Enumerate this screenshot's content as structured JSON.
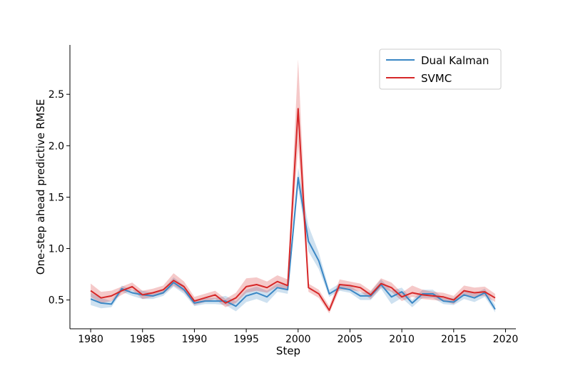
{
  "chart_data": {
    "type": "line",
    "title": "",
    "xlabel": "Step",
    "ylabel": "One-step ahead predictive RMSE",
    "xlim": [
      1978,
      2021
    ],
    "ylim": [
      0.22,
      2.98
    ],
    "xticks": [
      1980,
      1985,
      1990,
      1995,
      2000,
      2005,
      2010,
      2015,
      2020
    ],
    "yticks": [
      0.5,
      1.0,
      1.5,
      2.0,
      2.5
    ],
    "ytick_labels": [
      "0.5",
      "1.0",
      "1.5",
      "2.0",
      "2.5"
    ],
    "grid": false,
    "legend_position": "upper right",
    "x": [
      1980,
      1981,
      1982,
      1983,
      1984,
      1985,
      1986,
      1987,
      1988,
      1989,
      1990,
      1991,
      1992,
      1993,
      1994,
      1995,
      1996,
      1997,
      1998,
      1999,
      2000,
      2001,
      2002,
      2003,
      2004,
      2005,
      2006,
      2007,
      2008,
      2009,
      2010,
      2011,
      2012,
      2013,
      2014,
      2015,
      2016,
      2017,
      2018,
      2019
    ],
    "series": [
      {
        "name": "Dual Kalman",
        "color": "#3a87c5",
        "band_color": "#3a87c5",
        "values": [
          0.51,
          0.47,
          0.46,
          0.61,
          0.57,
          0.55,
          0.54,
          0.57,
          0.67,
          0.6,
          0.47,
          0.49,
          0.49,
          0.49,
          0.44,
          0.54,
          0.57,
          0.53,
          0.62,
          0.6,
          1.69,
          1.07,
          0.88,
          0.56,
          0.62,
          0.6,
          0.54,
          0.54,
          0.65,
          0.53,
          0.58,
          0.47,
          0.56,
          0.56,
          0.49,
          0.48,
          0.55,
          0.52,
          0.57,
          0.41
        ],
        "lower": [
          0.45,
          0.42,
          0.43,
          0.58,
          0.54,
          0.51,
          0.51,
          0.54,
          0.63,
          0.56,
          0.44,
          0.46,
          0.46,
          0.45,
          0.39,
          0.48,
          0.51,
          0.47,
          0.58,
          0.56,
          1.59,
          0.97,
          0.8,
          0.53,
          0.59,
          0.57,
          0.5,
          0.5,
          0.61,
          0.46,
          0.52,
          0.43,
          0.52,
          0.52,
          0.46,
          0.45,
          0.51,
          0.48,
          0.53,
          0.38
        ],
        "upper": [
          0.57,
          0.52,
          0.49,
          0.64,
          0.6,
          0.59,
          0.57,
          0.6,
          0.72,
          0.64,
          0.5,
          0.52,
          0.52,
          0.54,
          0.49,
          0.6,
          0.63,
          0.59,
          0.66,
          0.64,
          1.79,
          1.22,
          0.96,
          0.6,
          0.66,
          0.64,
          0.57,
          0.58,
          0.7,
          0.59,
          0.62,
          0.5,
          0.6,
          0.6,
          0.52,
          0.52,
          0.59,
          0.56,
          0.61,
          0.45
        ]
      },
      {
        "name": "SVMC",
        "color": "#d62728",
        "band_color": "#d62728",
        "values": [
          0.59,
          0.52,
          0.54,
          0.59,
          0.63,
          0.55,
          0.57,
          0.6,
          0.69,
          0.63,
          0.49,
          0.52,
          0.55,
          0.47,
          0.52,
          0.63,
          0.65,
          0.62,
          0.68,
          0.64,
          2.36,
          0.62,
          0.56,
          0.4,
          0.65,
          0.64,
          0.62,
          0.55,
          0.66,
          0.62,
          0.53,
          0.57,
          0.55,
          0.54,
          0.53,
          0.5,
          0.59,
          0.57,
          0.58,
          0.52
        ],
        "lower": [
          0.53,
          0.47,
          0.49,
          0.55,
          0.6,
          0.51,
          0.53,
          0.56,
          0.64,
          0.58,
          0.45,
          0.48,
          0.51,
          0.43,
          0.47,
          0.57,
          0.59,
          0.57,
          0.63,
          0.59,
          2.0,
          0.58,
          0.52,
          0.37,
          0.6,
          0.6,
          0.58,
          0.51,
          0.62,
          0.58,
          0.49,
          0.53,
          0.51,
          0.5,
          0.49,
          0.46,
          0.55,
          0.53,
          0.54,
          0.48
        ],
        "upper": [
          0.66,
          0.58,
          0.59,
          0.63,
          0.67,
          0.59,
          0.61,
          0.64,
          0.76,
          0.68,
          0.53,
          0.56,
          0.59,
          0.51,
          0.57,
          0.71,
          0.72,
          0.68,
          0.74,
          0.7,
          2.84,
          0.66,
          0.6,
          0.44,
          0.7,
          0.68,
          0.66,
          0.59,
          0.71,
          0.67,
          0.57,
          0.64,
          0.6,
          0.58,
          0.57,
          0.54,
          0.64,
          0.62,
          0.63,
          0.56
        ]
      }
    ]
  }
}
